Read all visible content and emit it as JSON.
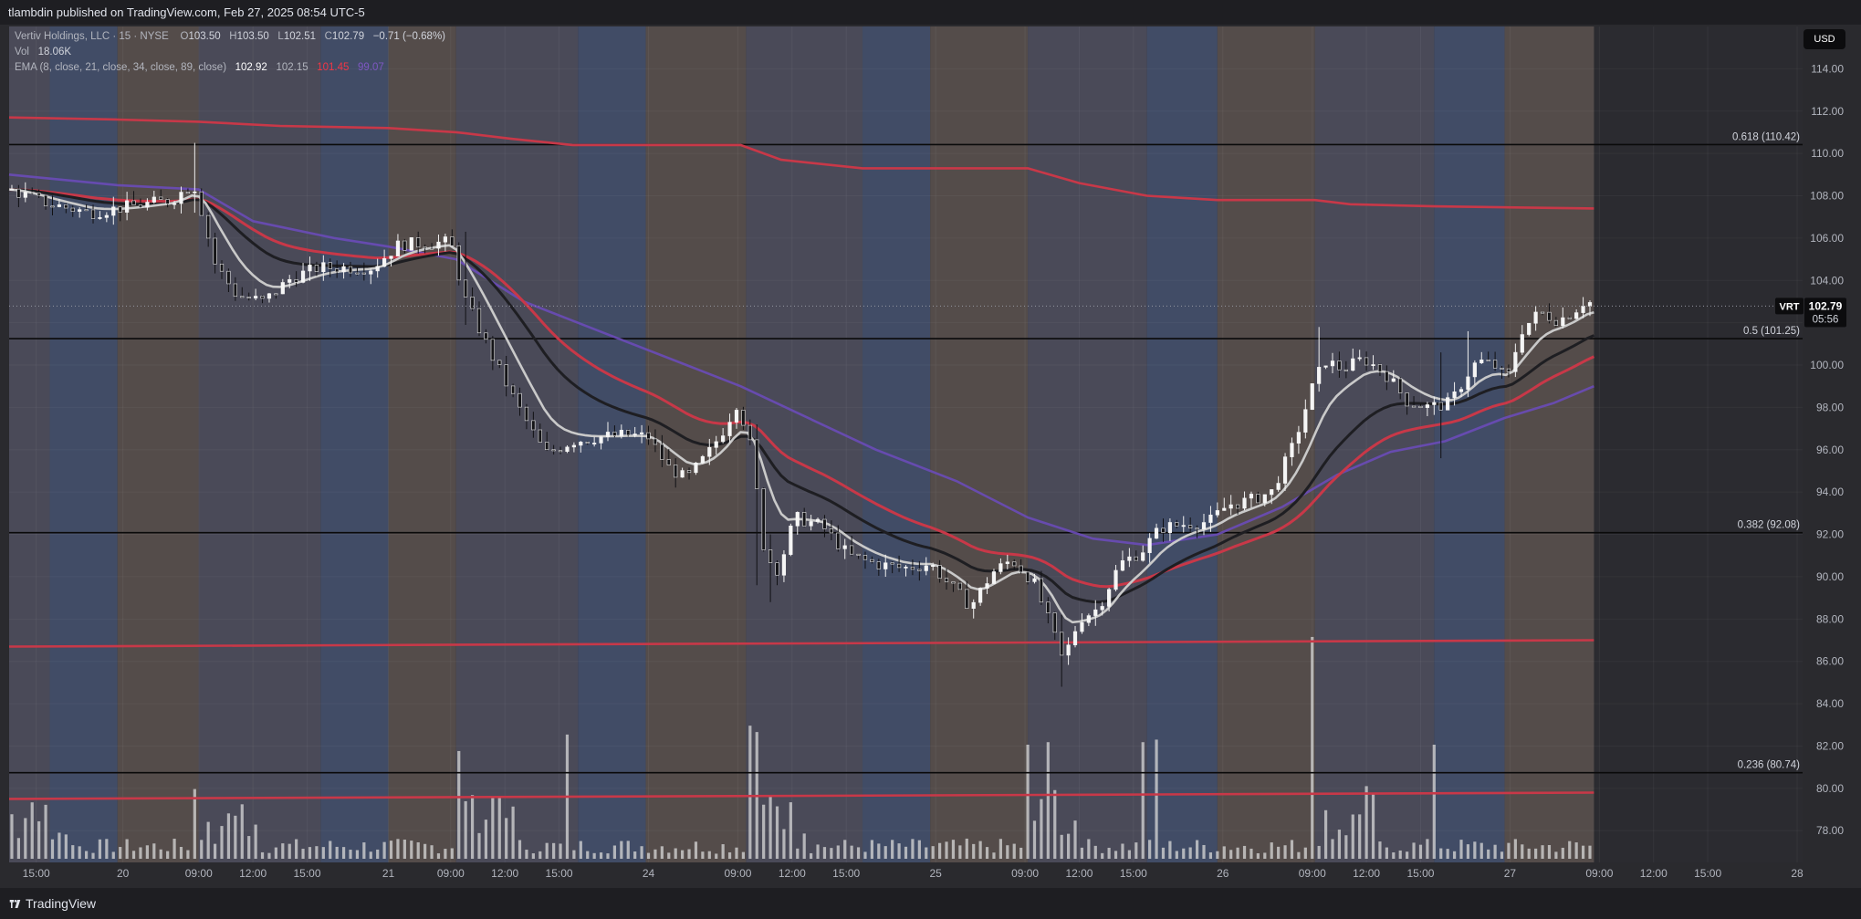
{
  "header": {
    "publish_text": "tlambdin published on TradingView.com, Feb 27, 2025 08:54 UTC-5"
  },
  "legend": {
    "symbol_desc": "Vertiv Holdings, LLC · 15 · NYSE",
    "ohlc": {
      "o_label": "O",
      "o": "103.50",
      "h_label": "H",
      "h": "103.50",
      "l_label": "L",
      "l": "102.51",
      "c_label": "C",
      "c": "102.79",
      "change": "−0.71 (−0.68%)"
    },
    "vol_label": "Vol",
    "vol": "18.06K",
    "ema_label": "EMA (8, close, 21, close, 34, close, 89, close)",
    "ema_values": [
      "102.92",
      "102.15",
      "101.45",
      "99.07"
    ],
    "ema_colors": [
      "#ffffff",
      "#b2b5be",
      "#f23645",
      "#7e57c2"
    ]
  },
  "currency_button": "USD",
  "footer": {
    "brand": "TradingView"
  },
  "colors": {
    "session_a": "#4a4a58",
    "session_b": "#414c66",
    "session_c": "#544c4a",
    "ema_fast": "#c9c9c9",
    "ema_mid": "#1e1e22",
    "ema_slow": "#c83848",
    "ema_long": "#6a4bb8",
    "sma_red": "#c83848",
    "fib_line": "#0a0a0a"
  },
  "chart_data": {
    "type": "candlestick",
    "symbol": "VRT",
    "price_scale": {
      "ylim": [
        76.5,
        116.0
      ],
      "ticks": [
        "78.00",
        "80.00",
        "82.00",
        "84.00",
        "86.00",
        "88.00",
        "90.00",
        "92.00",
        "94.00",
        "96.00",
        "98.00",
        "100.00",
        "102.00",
        "104.00",
        "106.00",
        "108.00",
        "110.00",
        "112.00",
        "114.00"
      ]
    },
    "time_axis": {
      "labels": [
        {
          "t": 1,
          "text": "15:00"
        },
        {
          "t": 4.2,
          "text": "20"
        },
        {
          "t": 7,
          "text": "09:00"
        },
        {
          "t": 9,
          "text": "12:00"
        },
        {
          "t": 11,
          "text": "15:00"
        },
        {
          "t": 14,
          "text": "21"
        },
        {
          "t": 16.3,
          "text": "09:00"
        },
        {
          "t": 18.3,
          "text": "12:00"
        },
        {
          "t": 20.3,
          "text": "15:00"
        },
        {
          "t": 23.6,
          "text": "24"
        },
        {
          "t": 26.9,
          "text": "09:00"
        },
        {
          "t": 28.9,
          "text": "12:00"
        },
        {
          "t": 30.9,
          "text": "15:00"
        },
        {
          "t": 34.2,
          "text": "25"
        },
        {
          "t": 37.5,
          "text": "09:00"
        },
        {
          "t": 39.5,
          "text": "12:00"
        },
        {
          "t": 41.5,
          "text": "15:00"
        },
        {
          "t": 44.8,
          "text": "26"
        },
        {
          "t": 48.1,
          "text": "09:00"
        },
        {
          "t": 50.1,
          "text": "12:00"
        },
        {
          "t": 52.1,
          "text": "15:00"
        },
        {
          "t": 55.4,
          "text": "27"
        },
        {
          "t": 58.7,
          "text": "09:00"
        },
        {
          "t": 60.7,
          "text": "12:00"
        },
        {
          "t": 62.7,
          "text": "15:00"
        },
        {
          "t": 66,
          "text": "28"
        }
      ]
    },
    "last_price": {
      "symbol_label": "VRT",
      "value": 102.79,
      "value_text": "102.79",
      "countdown": "05:56"
    },
    "fib_levels": [
      {
        "label": "0.618 (110.42)",
        "value": 110.42
      },
      {
        "label": "0.5 (101.25)",
        "value": 101.25
      },
      {
        "label": "0.382 (92.08)",
        "value": 92.08
      },
      {
        "label": "0.236 (80.74)",
        "value": 80.74
      }
    ],
    "sessions": [
      {
        "start": 0,
        "end": 1.5,
        "kind": "a"
      },
      {
        "start": 1.5,
        "end": 4,
        "kind": "b"
      },
      {
        "start": 4,
        "end": 7,
        "kind": "c"
      },
      {
        "start": 7,
        "end": 11.5,
        "kind": "a"
      },
      {
        "start": 11.5,
        "end": 14,
        "kind": "b"
      },
      {
        "start": 14,
        "end": 16.5,
        "kind": "c"
      },
      {
        "start": 16.5,
        "end": 21,
        "kind": "a"
      },
      {
        "start": 21,
        "end": 23.5,
        "kind": "b"
      },
      {
        "start": 23.5,
        "end": 27.2,
        "kind": "c"
      },
      {
        "start": 27.2,
        "end": 31.5,
        "kind": "a"
      },
      {
        "start": 31.5,
        "end": 34,
        "kind": "b"
      },
      {
        "start": 34,
        "end": 37.6,
        "kind": "c"
      },
      {
        "start": 37.6,
        "end": 42,
        "kind": "a"
      },
      {
        "start": 42,
        "end": 44.6,
        "kind": "b"
      },
      {
        "start": 44.6,
        "end": 48.2,
        "kind": "c"
      },
      {
        "start": 48.2,
        "end": 52.6,
        "kind": "a"
      },
      {
        "start": 52.6,
        "end": 55.2,
        "kind": "b"
      },
      {
        "start": 55.2,
        "end": 58.5,
        "kind": "c"
      }
    ],
    "price_path": [
      [
        0,
        108.3
      ],
      [
        1.5,
        107.6
      ],
      [
        3,
        107.2
      ],
      [
        4.5,
        107.5
      ],
      [
        6,
        107.8
      ],
      [
        6.8,
        108.6
      ],
      [
        7.0,
        107.8
      ],
      [
        7.6,
        104.8
      ],
      [
        8.4,
        103.3
      ],
      [
        9.4,
        103.0
      ],
      [
        10.4,
        104.1
      ],
      [
        11.4,
        104.6
      ],
      [
        12.4,
        104.6
      ],
      [
        13.4,
        104.6
      ],
      [
        14.4,
        105.7
      ],
      [
        16.3,
        105.8
      ],
      [
        16.8,
        103.2
      ],
      [
        17.8,
        100.5
      ],
      [
        18.8,
        98.0
      ],
      [
        19.8,
        95.8
      ],
      [
        20.8,
        96.4
      ],
      [
        21.8,
        96.6
      ],
      [
        22.8,
        96.7
      ],
      [
        23.6,
        96.6
      ],
      [
        24.3,
        95.2
      ],
      [
        25.0,
        94.6
      ],
      [
        25.8,
        95.8
      ],
      [
        26.4,
        97.0
      ],
      [
        26.9,
        98.3
      ],
      [
        27.4,
        96.0
      ],
      [
        27.9,
        91.0
      ],
      [
        28.4,
        90.3
      ],
      [
        29.0,
        92.8
      ],
      [
        30.0,
        92.4
      ],
      [
        31.0,
        91.0
      ],
      [
        32.0,
        90.6
      ],
      [
        33.0,
        90.4
      ],
      [
        34.0,
        90.6
      ],
      [
        34.8,
        89.5
      ],
      [
        35.5,
        88.6
      ],
      [
        36.3,
        90.2
      ],
      [
        37.0,
        90.8
      ],
      [
        37.8,
        89.8
      ],
      [
        38.5,
        87.5
      ],
      [
        38.9,
        86.0
      ],
      [
        39.5,
        88.0
      ],
      [
        40.2,
        88.5
      ],
      [
        41.0,
        90.6
      ],
      [
        41.8,
        91.2
      ],
      [
        42.5,
        92.3
      ],
      [
        43.5,
        92.5
      ],
      [
        44.3,
        92.6
      ],
      [
        45.0,
        93.4
      ],
      [
        45.8,
        93.6
      ],
      [
        46.6,
        94.0
      ],
      [
        47.4,
        96.2
      ],
      [
        48.2,
        99.3
      ],
      [
        48.6,
        100.2
      ],
      [
        49.2,
        99.8
      ],
      [
        50.0,
        100.3
      ],
      [
        50.8,
        99.6
      ],
      [
        51.6,
        98.3
      ],
      [
        52.4,
        98.0
      ],
      [
        53.2,
        98.2
      ],
      [
        53.8,
        99.5
      ],
      [
        54.2,
        100.2
      ],
      [
        54.8,
        100.0
      ],
      [
        55.3,
        99.3
      ],
      [
        55.8,
        101.6
      ],
      [
        56.5,
        102.5
      ],
      [
        57.2,
        102.1
      ],
      [
        57.8,
        102.6
      ],
      [
        58.2,
        103.1
      ],
      [
        58.5,
        102.8
      ]
    ],
    "spikes": [
      {
        "t": 6.8,
        "high": 110.5,
        "low": 107.2
      },
      {
        "t": 16.8,
        "high": 106.3,
        "low": 101.9
      },
      {
        "t": 27.6,
        "high": 97.2,
        "low": 89.6
      },
      {
        "t": 28.2,
        "high": 92.0,
        "low": 88.8
      },
      {
        "t": 38.9,
        "high": 88.2,
        "low": 84.8
      },
      {
        "t": 48.4,
        "high": 101.8,
        "low": 98.9
      },
      {
        "t": 52.8,
        "high": 100.6,
        "low": 95.6
      },
      {
        "t": 53.9,
        "high": 101.6,
        "low": 99.6
      }
    ],
    "ema_long_path": [
      [
        0,
        109.0
      ],
      [
        4,
        108.5
      ],
      [
        7,
        108.3
      ],
      [
        9,
        106.8
      ],
      [
        12,
        106.0
      ],
      [
        14,
        105.6
      ],
      [
        16.5,
        105.0
      ],
      [
        19,
        103.0
      ],
      [
        22,
        101.5
      ],
      [
        25,
        100.0
      ],
      [
        27,
        99.0
      ],
      [
        29,
        97.8
      ],
      [
        32,
        96.0
      ],
      [
        35,
        94.5
      ],
      [
        37.6,
        92.8
      ],
      [
        40,
        91.8
      ],
      [
        42,
        91.5
      ],
      [
        44.6,
        92.0
      ],
      [
        47,
        93.3
      ],
      [
        49,
        94.8
      ],
      [
        51,
        95.9
      ],
      [
        53,
        96.4
      ],
      [
        55.2,
        97.5
      ],
      [
        57,
        98.2
      ],
      [
        58.5,
        99.0
      ]
    ],
    "sma_upper_path": [
      [
        0,
        111.7
      ],
      [
        4,
        111.6
      ],
      [
        7,
        111.5
      ],
      [
        10,
        111.3
      ],
      [
        14,
        111.2
      ],
      [
        16.5,
        111.0
      ],
      [
        18.5,
        110.7
      ],
      [
        20.8,
        110.4
      ],
      [
        23.5,
        110.4
      ],
      [
        27.0,
        110.4
      ],
      [
        28.5,
        109.7
      ],
      [
        31.5,
        109.3
      ],
      [
        34,
        109.3
      ],
      [
        37.6,
        109.3
      ],
      [
        39.5,
        108.6
      ],
      [
        42,
        108.0
      ],
      [
        44.6,
        107.8
      ],
      [
        48.2,
        107.8
      ],
      [
        49.5,
        107.6
      ],
      [
        52.6,
        107.5
      ],
      [
        58.5,
        107.4
      ]
    ],
    "sma_mid_path": [
      [
        0,
        86.7
      ],
      [
        20,
        86.8
      ],
      [
        40,
        86.9
      ],
      [
        58.5,
        87.0
      ]
    ],
    "sma_lower_path": [
      [
        0,
        79.5
      ],
      [
        20,
        79.6
      ],
      [
        40,
        79.7
      ],
      [
        58.5,
        79.8
      ]
    ],
    "volume": {
      "ymax": 18,
      "spikes": [
        {
          "t": 6.8,
          "v": 5.5
        },
        {
          "t": 16.6,
          "v": 8.5
        },
        {
          "t": 20.7,
          "v": 9.8
        },
        {
          "t": 27.3,
          "v": 10.5
        },
        {
          "t": 27.7,
          "v": 10.0
        },
        {
          "t": 37.7,
          "v": 9.0
        },
        {
          "t": 38.3,
          "v": 9.2
        },
        {
          "t": 41.8,
          "v": 9.2
        },
        {
          "t": 42.3,
          "v": 9.4
        },
        {
          "t": 48.1,
          "v": 17.5
        },
        {
          "t": 52.5,
          "v": 9.0
        }
      ]
    }
  }
}
